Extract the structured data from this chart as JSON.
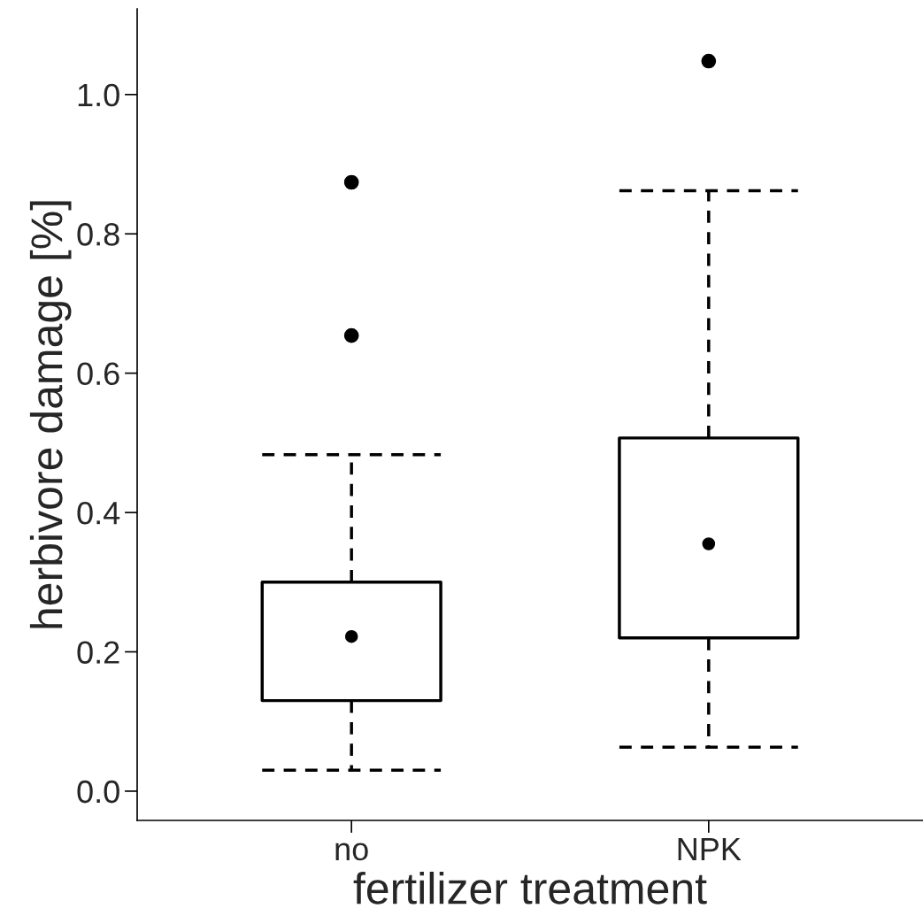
{
  "chart_data": {
    "type": "box",
    "xlabel": "fertilizer treatment",
    "ylabel": "herbivore damage [%]",
    "categories": [
      "no",
      "NPK"
    ],
    "boxes": [
      {
        "low": 0.03,
        "q1": 0.13,
        "median": 0.222,
        "q3": 0.3,
        "high": 0.483,
        "outliers": [
          0.654,
          0.874
        ]
      },
      {
        "low": 0.063,
        "q1": 0.22,
        "median": 0.355,
        "q3": 0.507,
        "high": 0.862,
        "outliers": [
          1.048
        ]
      }
    ],
    "color": "#000000",
    "line_style": "dashed",
    "ylim": [
      -0.042,
      1.123
    ],
    "yticks": [
      {
        "value": 0,
        "label": "0.0"
      },
      0.2,
      0.4,
      0.6,
      0.8,
      {
        "value": 1,
        "label": "1.0"
      }
    ],
    "grid": false
  }
}
